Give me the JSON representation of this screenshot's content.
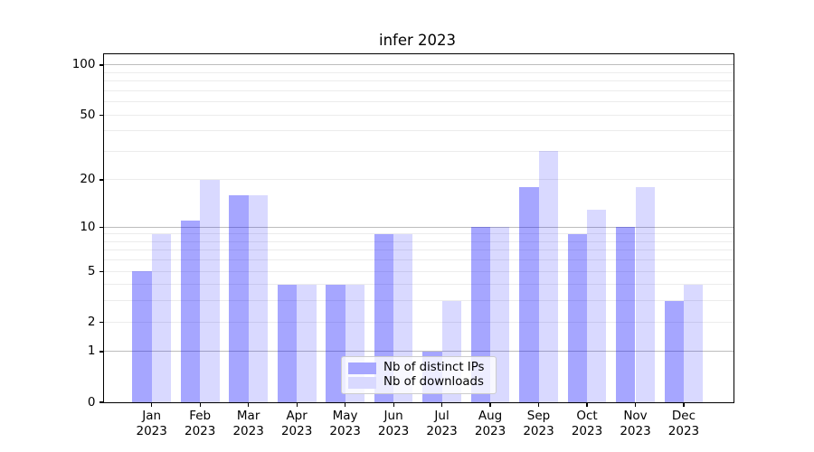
{
  "chart_data": {
    "type": "bar",
    "title": "infer 2023",
    "categories": [
      "Jan\n2023",
      "Feb\n2023",
      "Mar\n2023",
      "Apr\n2023",
      "May\n2023",
      "Jun\n2023",
      "Jul\n2023",
      "Aug\n2023",
      "Sep\n2023",
      "Oct\n2023",
      "Nov\n2023",
      "Dec\n2023"
    ],
    "series": [
      {
        "name": "Nb of distinct IPs",
        "color": "rgba(0,0,255,0.35)",
        "color_hex": "#a6a6ff",
        "values": [
          5,
          11,
          16,
          4,
          4,
          9,
          1,
          10,
          18,
          9,
          10,
          3
        ]
      },
      {
        "name": "Nb of downloads",
        "color": "rgba(0,0,255,0.15)",
        "color_hex": "#d9d9ff",
        "values": [
          9,
          20,
          16,
          4,
          4,
          9,
          3,
          10,
          30,
          13,
          18,
          4
        ]
      }
    ],
    "xlabel": "",
    "ylabel": "",
    "yscale": "log1p",
    "ylim": [
      0,
      116
    ],
    "y_tick_labels": [
      100,
      50,
      20,
      10,
      5,
      2,
      1,
      0
    ],
    "major_gridlines": [
      1,
      10,
      100
    ],
    "minor_gridlines": [
      2,
      3,
      4,
      5,
      6,
      7,
      8,
      9,
      20,
      30,
      40,
      50,
      60,
      70,
      80,
      90
    ],
    "grid": "on",
    "legend_position": "lower center",
    "colors": {
      "bar_distinct_ips": "#a6a6ff",
      "bar_downloads": "#d9d9ff",
      "major_grid": "#bdbdbd",
      "minor_grid": "#ececec",
      "spine": "#000000",
      "legend_border": "#cccccc"
    }
  }
}
